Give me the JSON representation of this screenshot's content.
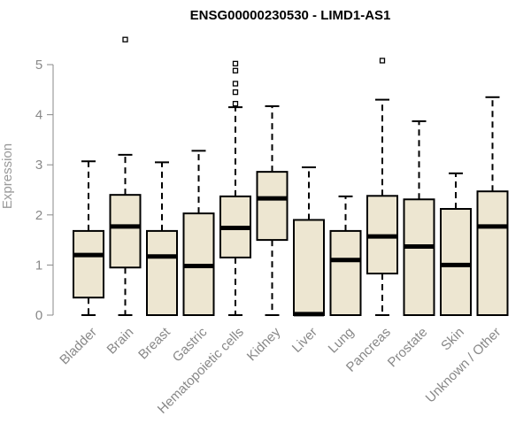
{
  "chart_data": {
    "type": "boxplot",
    "title": "ENSG00000230530 - LIMD1-AS1",
    "ylabel": "Expression",
    "xlabel": "",
    "ylim": [
      0,
      5.5
    ],
    "yticks": [
      0,
      1,
      2,
      3,
      4,
      5
    ],
    "categories": [
      "Bladder",
      "Brain",
      "Breast",
      "Gastric",
      "Hematopoietic cells",
      "Kidney",
      "Liver",
      "Lung",
      "Pancreas",
      "Prostate",
      "Skin",
      "Unknown / Other"
    ],
    "series": [
      {
        "boxes": [
          {
            "category": "Bladder",
            "whisker_low": 0,
            "q1": 0.35,
            "median": 1.2,
            "q3": 1.68,
            "whisker_high": 3.07,
            "outliers": []
          },
          {
            "category": "Brain",
            "whisker_low": 0,
            "q1": 0.95,
            "median": 1.77,
            "q3": 2.4,
            "whisker_high": 3.2,
            "outliers": [
              5.5
            ]
          },
          {
            "category": "Breast",
            "whisker_low": 0,
            "q1": 0,
            "median": 1.17,
            "q3": 1.68,
            "whisker_high": 3.05,
            "outliers": []
          },
          {
            "category": "Gastric",
            "whisker_low": 0,
            "q1": 0,
            "median": 0.98,
            "q3": 2.03,
            "whisker_high": 3.28,
            "outliers": []
          },
          {
            "category": "Hematopoietic cells",
            "whisker_low": 0,
            "q1": 1.15,
            "median": 1.74,
            "q3": 2.37,
            "whisker_high": 4.15,
            "outliers": [
              4.22,
              4.45,
              4.62,
              4.88,
              5.02
            ]
          },
          {
            "category": "Kidney",
            "whisker_low": 0,
            "q1": 1.5,
            "median": 2.33,
            "q3": 2.86,
            "whisker_high": 4.17,
            "outliers": []
          },
          {
            "category": "Liver",
            "whisker_low": 0,
            "q1": 0,
            "median": 0.02,
            "q3": 1.9,
            "whisker_high": 2.95,
            "outliers": []
          },
          {
            "category": "Lung",
            "whisker_low": 0,
            "q1": 0,
            "median": 1.1,
            "q3": 1.68,
            "whisker_high": 2.37,
            "outliers": []
          },
          {
            "category": "Pancreas",
            "whisker_low": 0,
            "q1": 0.83,
            "median": 1.57,
            "q3": 2.38,
            "whisker_high": 4.3,
            "outliers": [
              5.08
            ]
          },
          {
            "category": "Prostate",
            "whisker_low": 0,
            "q1": 0,
            "median": 1.37,
            "q3": 2.31,
            "whisker_high": 3.87,
            "outliers": []
          },
          {
            "category": "Skin",
            "whisker_low": 0,
            "q1": 0,
            "median": 1.0,
            "q3": 2.12,
            "whisker_high": 2.83,
            "outliers": []
          },
          {
            "category": "Unknown / Other",
            "whisker_low": 0,
            "q1": 0,
            "median": 1.77,
            "q3": 2.47,
            "whisker_high": 4.35,
            "outliers": []
          }
        ]
      }
    ],
    "box_fill": "#ede6d1",
    "box_stroke": "#000000",
    "axis_color": "#888888",
    "grid": false,
    "legend": "none"
  }
}
